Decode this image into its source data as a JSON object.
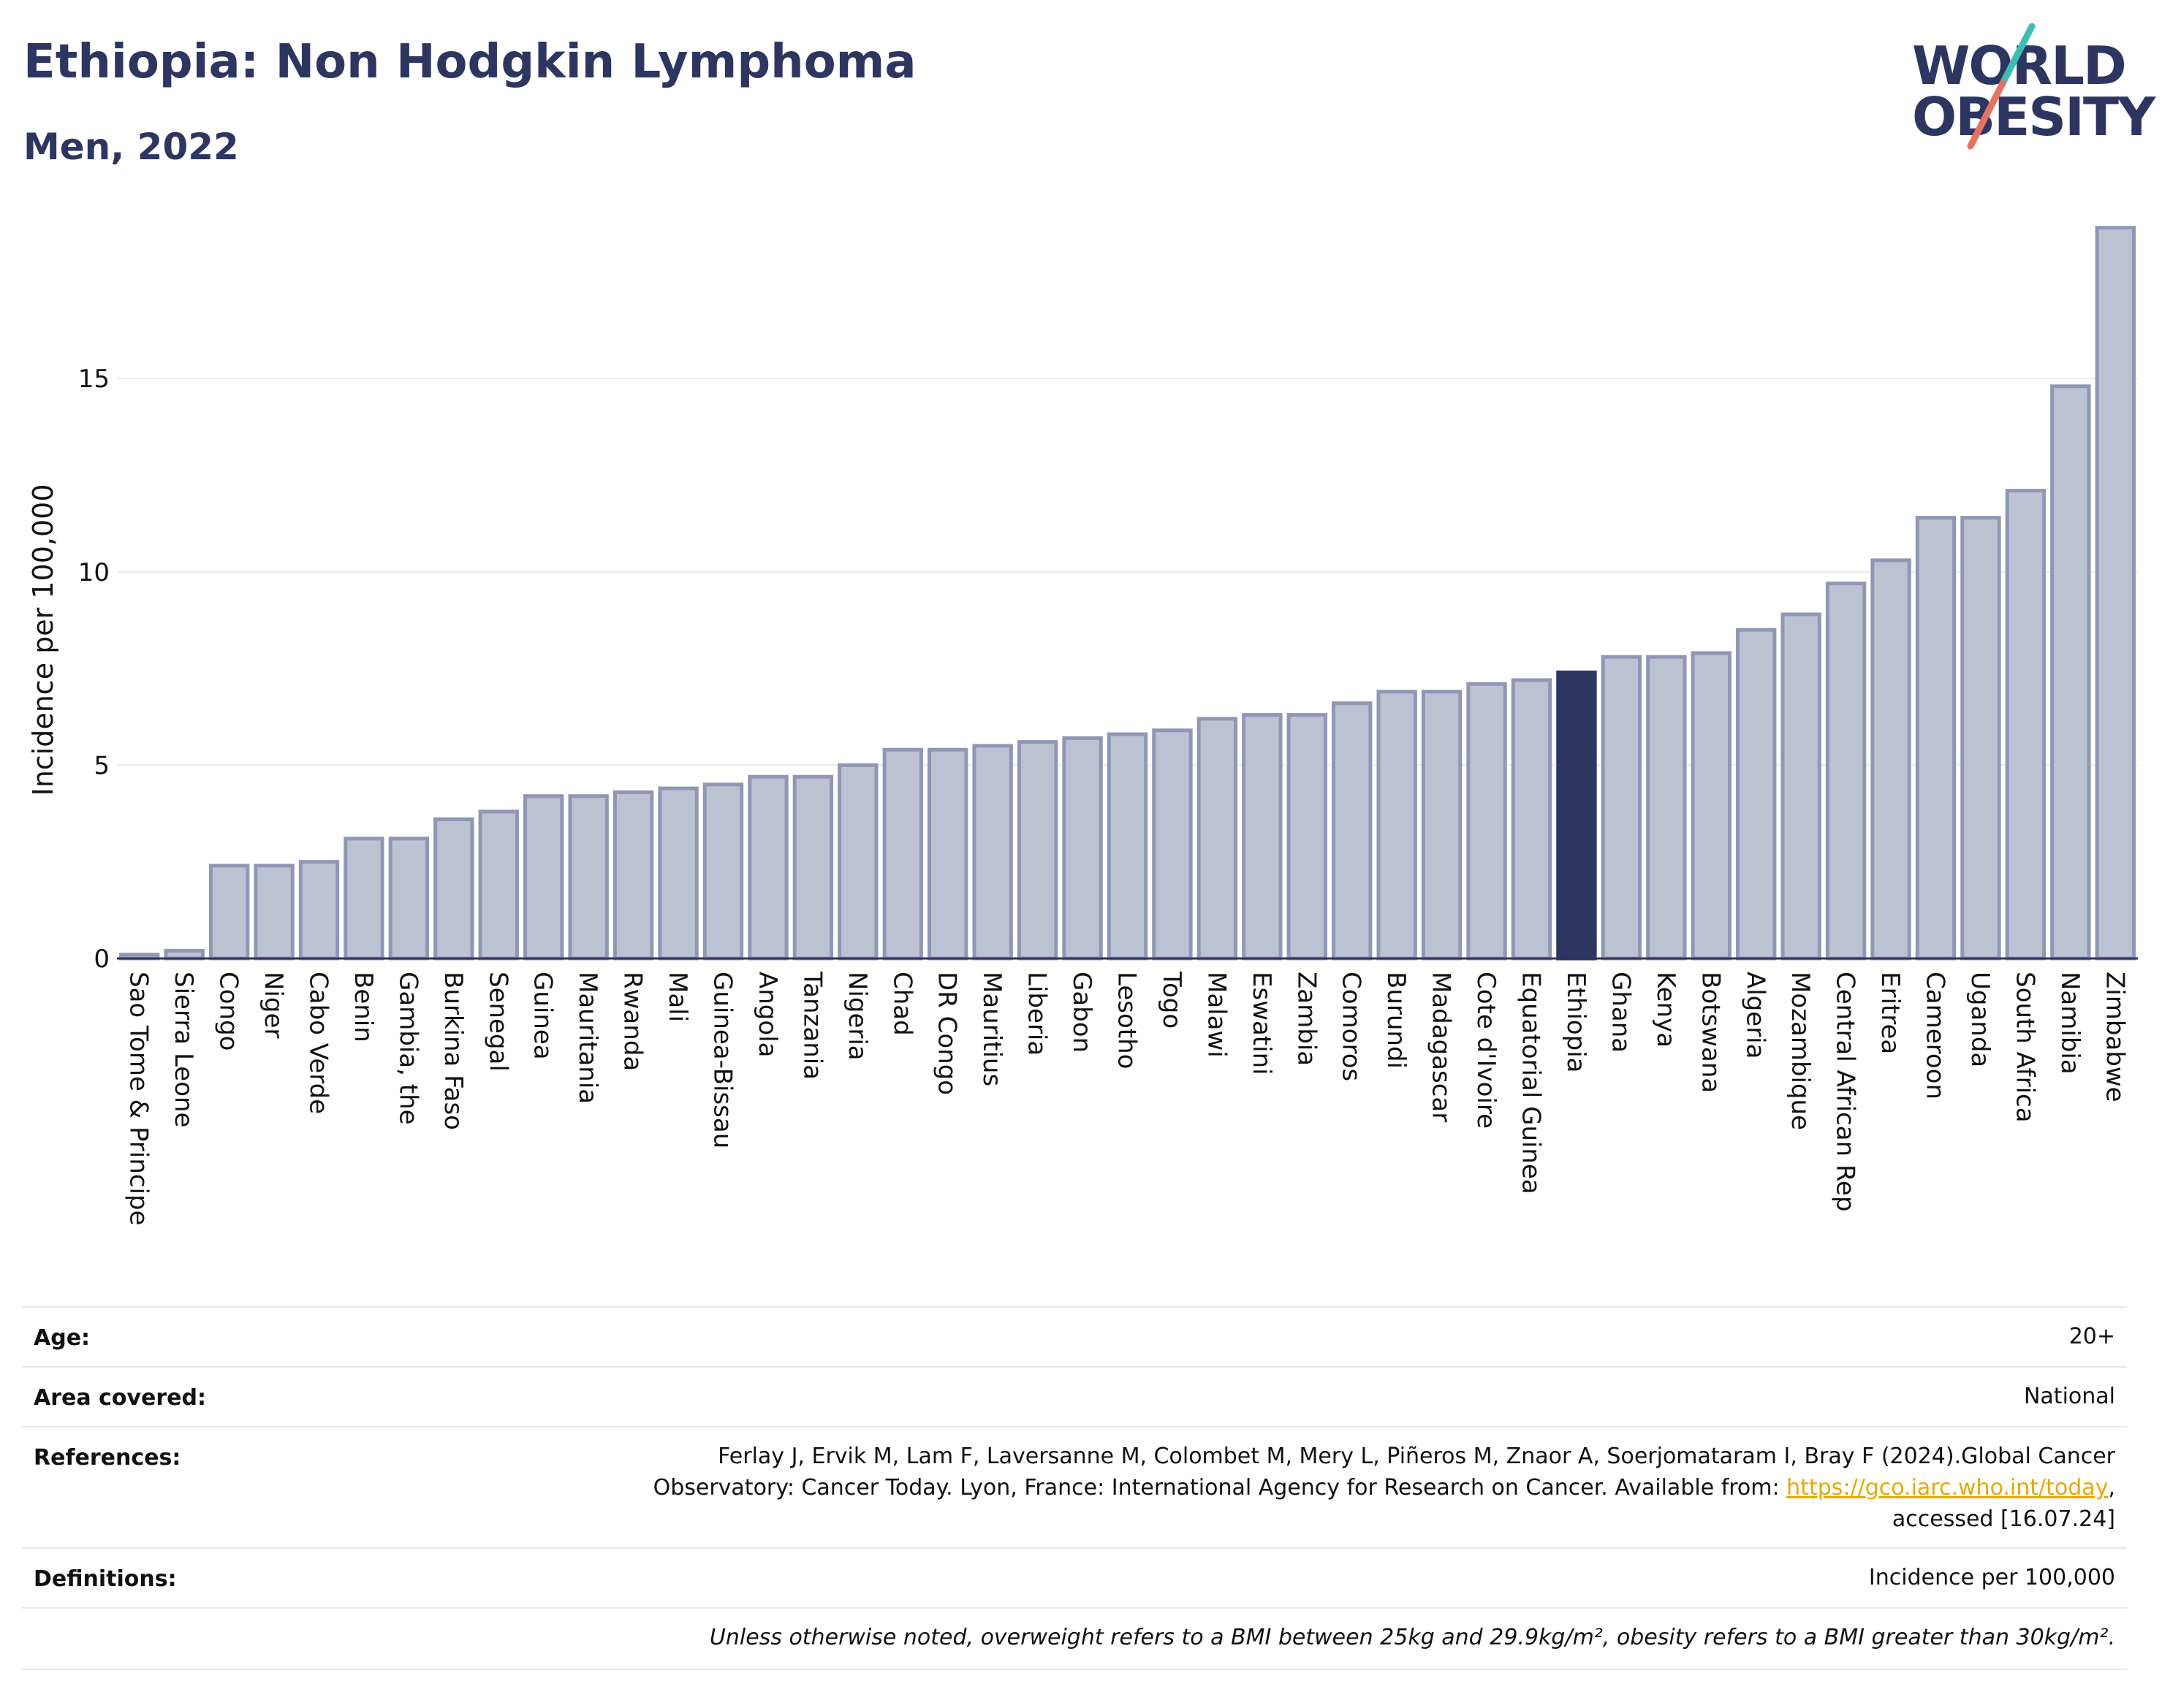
{
  "header": {
    "title": "Ethiopia: Non Hodgkin Lymphoma",
    "subtitle": "Men, 2022"
  },
  "logo": {
    "line1": "WORLD",
    "line2": "OBESITY"
  },
  "colors": {
    "bar": "#bdc2d3",
    "bar_border": "#8f97b4",
    "highlight": "#2d3561",
    "axis": "#2d3561",
    "grid": "#e8eaf1",
    "logo_teal": "#3bbfb3",
    "logo_red": "#e8705f"
  },
  "chart_data": {
    "type": "bar",
    "highlight": "Ethiopia",
    "ylabel": "Incidence per 100,000",
    "ylim": [
      0,
      19.5
    ],
    "yticks": [
      0,
      5,
      10,
      15
    ],
    "grid": true,
    "categories": [
      "Sao Tome & Principe",
      "Sierra Leone",
      "Congo",
      "Niger",
      "Cabo Verde",
      "Benin",
      "Gambia, the",
      "Burkina Faso",
      "Senegal",
      "Guinea",
      "Mauritania",
      "Rwanda",
      "Mali",
      "Guinea-Bissau",
      "Angola",
      "Tanzania",
      "Nigeria",
      "Chad",
      "DR Congo",
      "Mauritius",
      "Liberia",
      "Gabon",
      "Lesotho",
      "Togo",
      "Malawi",
      "Eswatini",
      "Zambia",
      "Comoros",
      "Burundi",
      "Madagascar",
      "Cote d'Ivoire",
      "Equatorial Guinea",
      "Ethiopia",
      "Ghana",
      "Kenya",
      "Botswana",
      "Algeria",
      "Mozambique",
      "Central African Rep",
      "Eritrea",
      "Cameroon",
      "Uganda",
      "South Africa",
      "Namibia",
      "Zimbabwe"
    ],
    "values": [
      0.1,
      0.2,
      2.4,
      2.4,
      2.5,
      3.1,
      3.1,
      3.6,
      3.8,
      4.2,
      4.2,
      4.3,
      4.4,
      4.5,
      4.7,
      4.7,
      5.0,
      5.4,
      5.4,
      5.5,
      5.6,
      5.7,
      5.8,
      5.9,
      6.2,
      6.3,
      6.3,
      6.6,
      6.9,
      6.9,
      7.1,
      7.2,
      7.4,
      7.8,
      7.8,
      7.9,
      8.5,
      8.9,
      9.7,
      10.3,
      11.4,
      11.4,
      12.1,
      14.8,
      18.9
    ]
  },
  "info": {
    "age_label": "Age:",
    "age_value": "20+",
    "area_label": "Area covered:",
    "area_value": "National",
    "references_label": "References:",
    "references_line1": "Ferlay J, Ervik M, Lam F, Laversanne M, Colombet M, Mery L, Piñeros M, Znaor A, Soerjomataram I, Bray F (2024).Global Cancer",
    "references_line2": "Observatory: Cancer Today. Lyon, France: International Agency for Research on Cancer. Available from: ",
    "references_link": "https://gco.iarc.who.int/today",
    "references_line2_end": ",",
    "references_line3": "accessed [16.07.24]",
    "definitions_label": "Definitions:",
    "definitions_value": "Incidence per 100,000",
    "note": "Unless otherwise noted, overweight refers to a BMI between 25kg and 29.9kg/m², obesity refers to a BMI greater than 30kg/m²."
  }
}
